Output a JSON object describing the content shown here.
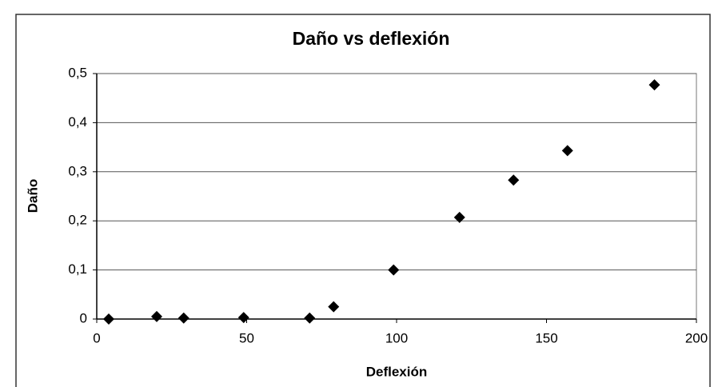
{
  "chart_data": {
    "type": "scatter",
    "title": "Daño vs deflexión",
    "x_label": "Deflexión",
    "y_label": "Daño",
    "series": [
      {
        "name": "Daño",
        "color": "#000000",
        "x": [
          4,
          20,
          29,
          49,
          71,
          79,
          99,
          121,
          139,
          157,
          186
        ],
        "values": [
          0,
          0.005,
          0.002,
          0.003,
          0.002,
          0.025,
          0.1,
          0.207,
          0.283,
          0.343,
          0.477
        ]
      }
    ],
    "xlim": [
      0,
      200
    ],
    "xticks": [
      0,
      50,
      100,
      150,
      200
    ],
    "ylim": [
      0,
      0.5
    ],
    "yticks": [
      0,
      {
        "value": 0.1,
        "label": "0,1"
      },
      {
        "value": 0.2,
        "label": "0,2"
      },
      {
        "value": 0.3,
        "label": "0,3"
      },
      {
        "value": 0.4,
        "label": "0,4"
      },
      {
        "value": 0.5,
        "label": "0,5"
      }
    ],
    "grid": true
  }
}
